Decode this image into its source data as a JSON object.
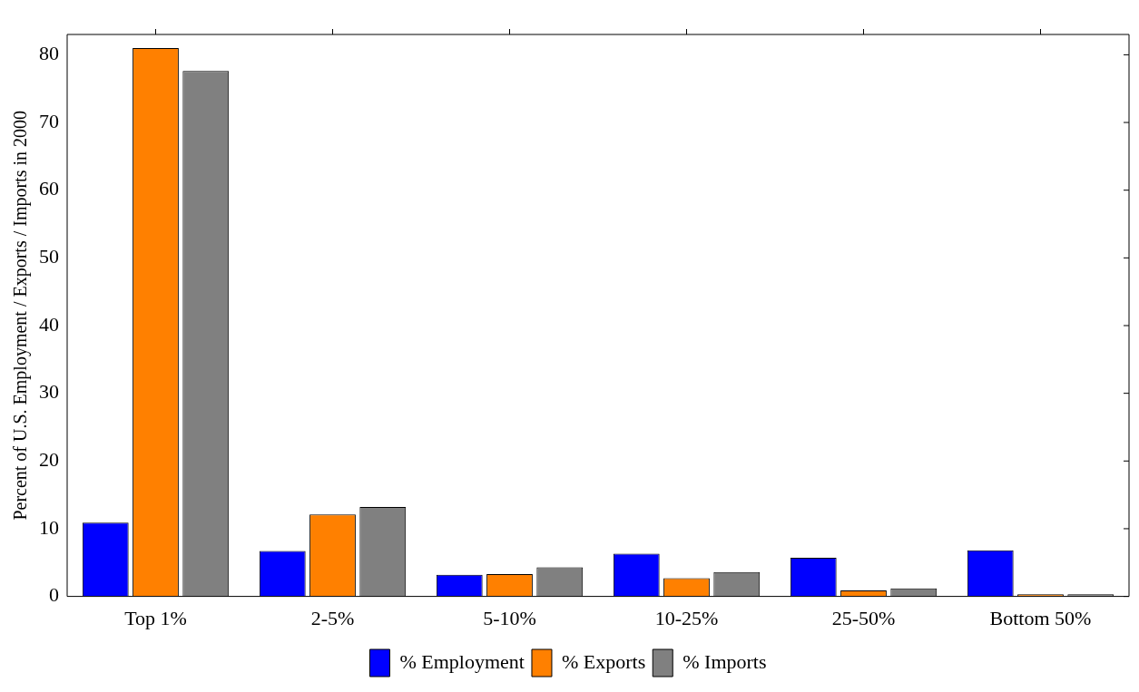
{
  "chart_data": {
    "type": "bar",
    "ylabel": "Percent of U.S. Employment / Exports / Imports in 2000",
    "categories": [
      "Top 1%",
      "2-5%",
      "5-10%",
      "10-25%",
      "25-50%",
      "Bottom 50%"
    ],
    "series": [
      {
        "name": "% Employment",
        "color": "#0000ff",
        "values": [
          10.9,
          6.7,
          3.2,
          6.3,
          5.7,
          6.8
        ]
      },
      {
        "name": "% Exports",
        "color": "#ff8000",
        "values": [
          81.0,
          12.1,
          3.3,
          2.7,
          0.9,
          0.3
        ]
      },
      {
        "name": "% Imports",
        "color": "#808080",
        "values": [
          77.6,
          13.2,
          4.3,
          3.6,
          1.2,
          0.3
        ]
      }
    ],
    "ylim": [
      0,
      83
    ],
    "yticks": [
      0,
      10,
      20,
      30,
      40,
      50,
      60,
      70,
      80
    ],
    "grid": false,
    "legend": "bottom"
  }
}
